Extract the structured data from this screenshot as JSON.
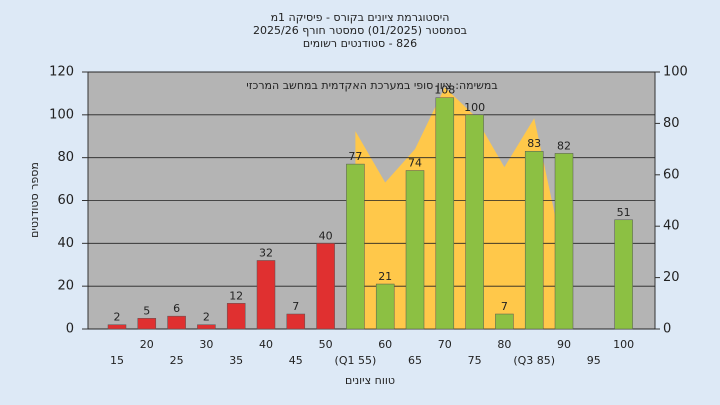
{
  "chart_data": {
    "type": "bar",
    "title": "היסטוגרמת ציונים בקורס - פיסיקה 1מ",
    "subtitle": "בסמסטר  (01/2025)  סמסטר חורף  2025/26",
    "subtitle2": "826 - סטודנטים רשומים",
    "annotation": "במשימה: ציון סופי במערכת האקדמית במחשב המרכזי",
    "xlabel": "טווח ציונים",
    "ylabel": "מספר סטודנטים",
    "categories": [
      "15",
      "20",
      "25",
      "30",
      "35",
      "40",
      "45",
      "50",
      "(Q1 55)",
      "60",
      "65",
      "70",
      "75",
      "80",
      "(Q3 85)",
      "90",
      "95",
      "100"
    ],
    "series": [
      {
        "values": [
          2,
          5,
          6,
          2,
          12,
          32,
          7,
          40,
          77,
          21,
          74,
          108,
          100,
          7,
          83,
          82,
          null,
          51
        ],
        "colors": [
          "#e03030",
          "#e03030",
          "#e03030",
          "#e03030",
          "#e03030",
          "#e03030",
          "#e03030",
          "#e03030",
          "#8cc043",
          "#8cc043",
          "#8cc043",
          "#8cc043",
          "#8cc043",
          "#8cc043",
          "#8cc043",
          "#8cc043",
          "#8cc043",
          "#8cc043"
        ]
      },
      {
        "type": "area",
        "axis": "y2",
        "color": "#ffc84a",
        "values": [
          null,
          null,
          null,
          null,
          null,
          null,
          null,
          null,
          77,
          57,
          70,
          94,
          83,
          63,
          82,
          28,
          null,
          null
        ]
      }
    ],
    "ylim": [
      0,
      120
    ],
    "yticks": [
      0,
      20,
      40,
      60,
      80,
      100,
      120
    ],
    "y2lim": [
      0,
      100
    ],
    "y2ticks": [
      0,
      20,
      40,
      60,
      80,
      100
    ],
    "grid": true
  }
}
